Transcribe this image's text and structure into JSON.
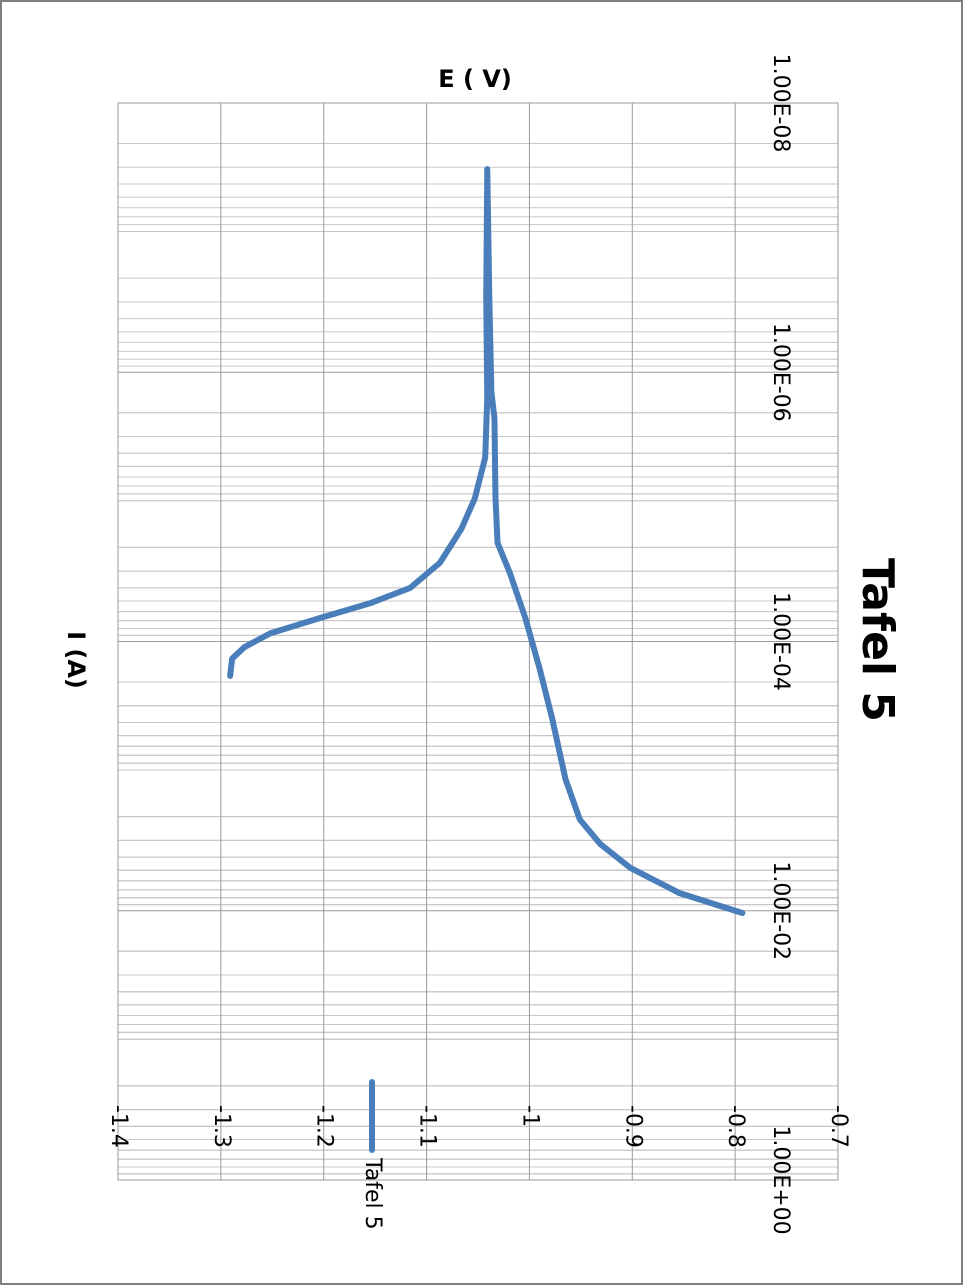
{
  "chart_data": {
    "type": "line",
    "title": "Tafel 5",
    "x_label": "I (A)",
    "y_label": "E ( V)",
    "x_log": true,
    "grid": true,
    "legend": "right",
    "xlim": [
      1e-08,
      1
    ],
    "xticks": [
      {
        "value": 1e-08,
        "label": "1.00E-08"
      },
      {
        "value": 1e-06,
        "label": "1.00E-06"
      },
      {
        "value": 0.0001,
        "label": "1.00E-04"
      },
      {
        "value": 0.01,
        "label": "1.00E-02"
      },
      {
        "value": 1,
        "label": "1.00E+00"
      }
    ],
    "ylim": [
      -1.4,
      -0.7
    ],
    "yticks": [
      -1.4,
      -1.3,
      -1.2,
      -1.1,
      -1,
      -0.9,
      -0.8,
      -0.7
    ],
    "series": [
      {
        "name": "Tafel 5",
        "color": "#4a7ebb",
        "x": [
          0.00018,
          0.000134,
          0.00011,
          8.7e-05,
          6.7e-05,
          5.2e-05,
          4e-05,
          2.6e-05,
          1.45e-05,
          8.6e-06,
          4.3e-06,
          1.55e-06,
          2.8e-07,
          3.1e-08,
          2.8e-07,
          1.4e-06,
          2.2e-06,
          8.6e-06,
          1.85e-05,
          3.1e-05,
          6.7e-05,
          0.00016,
          0.00037,
          0.00105,
          0.0021,
          0.0032,
          0.0048,
          0.0074,
          0.0104
        ],
        "values": [
          -1.291,
          -1.289,
          -1.277,
          -1.252,
          -1.204,
          -1.155,
          -1.116,
          -1.087,
          -1.066,
          -1.053,
          -1.043,
          -1.041,
          -1.042,
          -1.041,
          -1.039,
          -1.037,
          -1.034,
          -1.033,
          -1.031,
          -1.019,
          -1.004,
          -0.99,
          -0.978,
          -0.965,
          -0.951,
          -0.931,
          -0.902,
          -0.854,
          -0.793
        ]
      }
    ]
  }
}
